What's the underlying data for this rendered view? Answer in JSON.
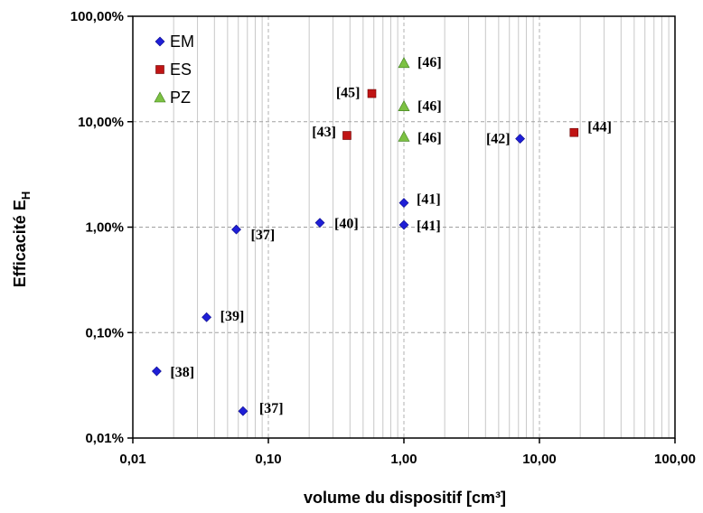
{
  "chart_data": {
    "type": "scatter",
    "xscale": "log",
    "yscale": "log",
    "xlim": [
      0.01,
      100
    ],
    "ylim": [
      0.0001,
      1
    ],
    "grid": true,
    "legend_position": "top-left",
    "xlabel": "volume du dispositif [cm³]",
    "ylabel_main": "Efficacité E",
    "ylabel_sub": "H",
    "xticks": [
      {
        "value": 0.01,
        "label": "0,01"
      },
      {
        "value": 0.1,
        "label": "0,10"
      },
      {
        "value": 1,
        "label": "1,00"
      },
      {
        "value": 10,
        "label": "10,00"
      },
      {
        "value": 100,
        "label": "100,00"
      }
    ],
    "yticks": [
      {
        "value": 0.0001,
        "label": "0,01%"
      },
      {
        "value": 0.001,
        "label": "0,10%"
      },
      {
        "value": 0.01,
        "label": "1,00%"
      },
      {
        "value": 0.1,
        "label": "10,00%"
      },
      {
        "value": 1,
        "label": "100,00%"
      }
    ],
    "series": [
      {
        "name": "EM",
        "marker": "diamond",
        "color": "#1f1fd6",
        "points": [
          {
            "x": 0.015,
            "y": 0.00043,
            "label": "[38]"
          },
          {
            "x": 0.035,
            "y": 0.0014,
            "label": "[39]"
          },
          {
            "x": 0.058,
            "y": 0.0095,
            "label": "[37]"
          },
          {
            "x": 0.065,
            "y": 0.00018,
            "label": "[37]"
          },
          {
            "x": 0.24,
            "y": 0.011,
            "label": "[40]"
          },
          {
            "x": 1.0,
            "y": 0.0105,
            "label": "[41]"
          },
          {
            "x": 1.0,
            "y": 0.017,
            "label": "[41]"
          },
          {
            "x": 7.2,
            "y": 0.069,
            "label": "[42]"
          }
        ]
      },
      {
        "name": "ES",
        "marker": "square",
        "color": "#c01414",
        "points": [
          {
            "x": 0.38,
            "y": 0.074,
            "label": "[43]"
          },
          {
            "x": 0.58,
            "y": 0.185,
            "label": "[45]"
          },
          {
            "x": 18.0,
            "y": 0.079,
            "label": "[44]"
          }
        ]
      },
      {
        "name": "PZ",
        "marker": "triangle",
        "color": "#7cc143",
        "points": [
          {
            "x": 1.0,
            "y": 0.36,
            "label": "[46]"
          },
          {
            "x": 1.0,
            "y": 0.14,
            "label": "[46]"
          },
          {
            "x": 1.0,
            "y": 0.072,
            "label": "[46]"
          }
        ]
      }
    ]
  }
}
